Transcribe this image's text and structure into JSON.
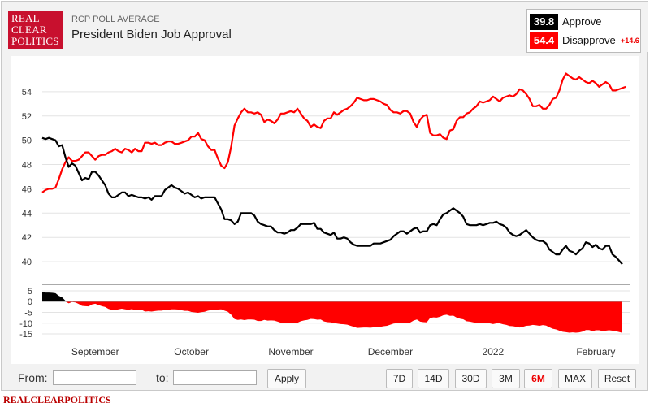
{
  "header": {
    "logo_lines": [
      "REAL",
      "CLEAR",
      "POLITICS"
    ],
    "subtitle": "RCP POLL AVERAGE",
    "title": "President Biden Job Approval"
  },
  "legend": {
    "approve_value": "39.8",
    "approve_label": "Approve",
    "disapprove_value": "54.4",
    "disapprove_label": "Disapprove",
    "spread": "+14.6"
  },
  "colors": {
    "approve": "#000000",
    "disapprove": "#ff0000",
    "spread_fill": "#ff0000"
  },
  "chart_data": {
    "type": "line",
    "title": "President Biden Job Approval",
    "x_tick_labels": [
      "September",
      "October",
      "November",
      "December",
      "2022",
      "February"
    ],
    "x_tick_index": [
      16,
      45,
      75,
      105,
      136,
      167
    ],
    "y_ticks": [
      40,
      42,
      44,
      46,
      48,
      50,
      52,
      54
    ],
    "ylim": [
      38.8,
      55.6
    ],
    "spread_ticks": [
      "5",
      "0",
      "-5",
      "-10",
      "-15"
    ],
    "spread_tick_values": [
      5,
      0,
      -5,
      -10,
      -15
    ],
    "spread_ylim": [
      -18,
      6.5
    ],
    "series": [
      {
        "name": "Approve",
        "values": [
          50.2,
          50.1,
          50.2,
          50.1,
          50.0,
          49.5,
          49.6,
          48.6,
          47.8,
          48.1,
          47.9,
          47.3,
          46.7,
          46.9,
          46.8,
          47.4,
          47.4,
          47.1,
          46.7,
          46.3,
          45.6,
          45.3,
          45.3,
          45.5,
          45.7,
          45.7,
          45.4,
          45.5,
          45.4,
          45.3,
          45.3,
          45.2,
          45.3,
          45.1,
          45.4,
          45.4,
          45.4,
          45.9,
          46.1,
          46.3,
          46.1,
          46.0,
          45.8,
          45.6,
          45.7,
          45.5,
          45.3,
          45.4,
          45.2,
          45.3,
          45.3,
          45.3,
          45.3,
          44.8,
          44.3,
          43.5,
          43.5,
          43.4,
          43.1,
          43.3,
          44.0,
          44.0,
          44.0,
          44.0,
          43.8,
          43.3,
          43.1,
          43.0,
          42.9,
          42.9,
          42.6,
          42.4,
          42.4,
          42.3,
          42.4,
          42.6,
          42.6,
          42.8,
          43.1,
          43.1,
          43.1,
          43.1,
          43.2,
          42.7,
          42.7,
          42.4,
          42.3,
          42.2,
          42.4,
          41.9,
          41.9,
          42.0,
          41.9,
          41.6,
          41.4,
          41.3,
          41.3,
          41.3,
          41.3,
          41.3,
          41.5,
          41.5,
          41.5,
          41.6,
          41.7,
          41.8,
          42.1,
          42.3,
          42.5,
          42.5,
          42.3,
          42.5,
          42.7,
          42.8,
          42.4,
          42.5,
          42.5,
          43.0,
          43.1,
          43.0,
          43.5,
          43.9,
          44.0,
          44.2,
          44.4,
          44.2,
          44.0,
          43.7,
          43.1,
          43.0,
          43.0,
          43.0,
          43.1,
          43.0,
          43.1,
          43.2,
          43.2,
          43.3,
          43.1,
          43.0,
          42.8,
          42.4,
          42.2,
          42.1,
          42.2,
          42.4,
          42.6,
          42.3,
          42.0,
          41.8,
          41.7,
          41.7,
          41.5,
          41.0,
          40.8,
          40.6,
          40.6,
          41.0,
          41.3,
          40.9,
          40.8,
          40.6,
          40.9,
          41.1,
          41.6,
          41.5,
          41.2,
          41.4,
          41.1,
          41.0,
          41.3,
          41.3,
          40.6,
          40.4,
          40.1,
          39.8
        ]
      },
      {
        "name": "Disapprove",
        "values": [
          45.7,
          45.9,
          46.0,
          46.0,
          46.1,
          46.8,
          47.6,
          48.2,
          48.6,
          48.3,
          48.3,
          48.4,
          48.7,
          49.0,
          49.0,
          48.7,
          48.4,
          48.7,
          48.8,
          48.8,
          49.0,
          49.1,
          49.3,
          49.1,
          49.0,
          49.3,
          49.2,
          49.0,
          49.3,
          49.1,
          49.1,
          49.8,
          49.8,
          49.7,
          49.8,
          49.6,
          49.6,
          49.8,
          49.9,
          49.9,
          49.7,
          49.7,
          49.8,
          49.9,
          50.0,
          50.3,
          50.3,
          50.6,
          50.1,
          50.0,
          49.5,
          49.2,
          49.2,
          48.5,
          47.9,
          47.7,
          48.2,
          49.5,
          51.2,
          51.8,
          52.3,
          52.6,
          52.3,
          52.3,
          52.2,
          52.3,
          52.1,
          51.5,
          51.7,
          51.6,
          51.4,
          51.7,
          52.2,
          52.2,
          52.3,
          52.4,
          52.3,
          52.6,
          52.2,
          51.8,
          51.6,
          51.1,
          51.3,
          51.1,
          51.0,
          51.6,
          51.8,
          51.8,
          52.3,
          52.1,
          52.3,
          52.5,
          52.6,
          52.8,
          53.1,
          53.5,
          53.4,
          53.3,
          53.3,
          53.4,
          53.4,
          53.3,
          53.2,
          53.0,
          52.9,
          52.5,
          52.3,
          52.3,
          52.2,
          52.4,
          52.4,
          52.2,
          51.5,
          51.1,
          51.7,
          52.0,
          52.1,
          50.6,
          50.4,
          50.4,
          50.5,
          50.2,
          50.1,
          50.8,
          50.9,
          51.6,
          51.9,
          51.9,
          52.2,
          52.3,
          52.6,
          52.8,
          53.2,
          53.1,
          53.2,
          53.3,
          53.6,
          53.4,
          53.2,
          53.5,
          53.6,
          53.7,
          53.6,
          53.8,
          54.2,
          54.1,
          53.8,
          53.4,
          52.8,
          52.8,
          52.9,
          52.6,
          52.6,
          52.9,
          53.4,
          53.5,
          54.1,
          55.0,
          55.5,
          55.3,
          55.1,
          55.0,
          55.2,
          55.0,
          54.8,
          54.7,
          54.9,
          54.7,
          54.4,
          54.6,
          54.8,
          54.6,
          54.1,
          54.1,
          54.2,
          54.3,
          54.4
        ]
      }
    ]
  },
  "controls": {
    "from_label": "From:",
    "to_label": "to:",
    "from_value": "",
    "to_value": "",
    "apply_label": "Apply",
    "ranges": [
      "7D",
      "14D",
      "30D",
      "3M",
      "6M",
      "MAX"
    ],
    "active_range": "6M",
    "reset_label": "Reset"
  },
  "footer": {
    "brand": "REALCLEARPOLITICS"
  }
}
